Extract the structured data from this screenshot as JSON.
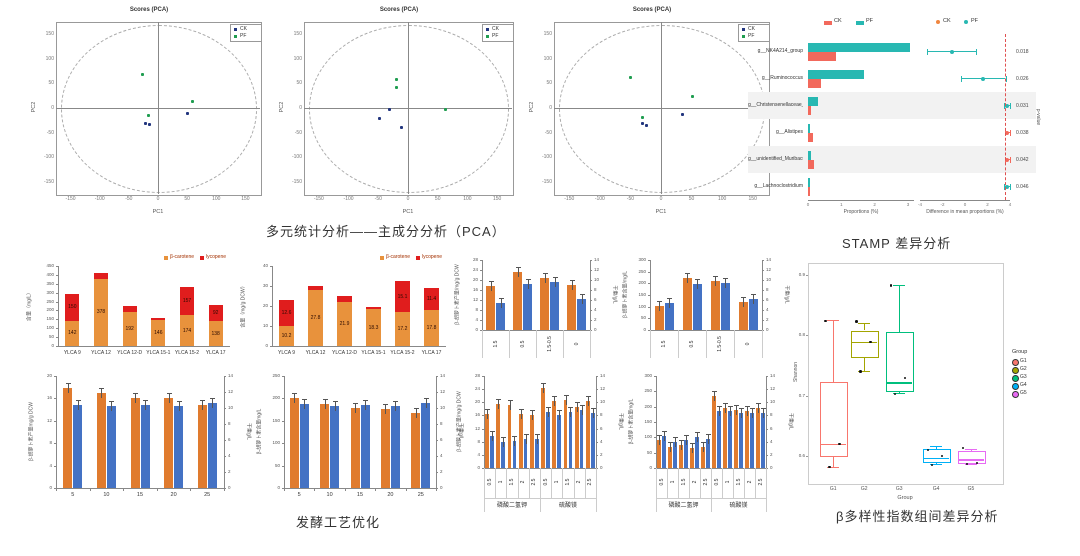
{
  "captions": {
    "pca": "多元统计分析——主成分分析（PCA）",
    "stamp": "STAMP 差异分析",
    "ferment": "发酵工艺优化",
    "beta": "β多样性指数组间差异分析"
  },
  "colors": {
    "navy": "#22357e",
    "green": "#1f9d50",
    "teal": "#28b8b2",
    "salmon": "#f2695c",
    "orange_dot": "#f0863f",
    "stack_orange": "#e8923c",
    "red": "#e01d1d",
    "bar_orange": "#e07b2e",
    "bar_blue": "#4472c4",
    "err": "#555555",
    "dashed_red": "#e05050"
  },
  "chart_data": {
    "pca1": {
      "type": "scatter",
      "title": "Scores (PCA)",
      "xlabel": "PC1",
      "ylabel": "PC2",
      "xticks": [
        "-150",
        "-100",
        "-50",
        "0",
        "50",
        "100",
        "150"
      ],
      "yticks": [
        "150",
        "100",
        "50",
        "0",
        "-50",
        "-100",
        "-150"
      ],
      "legend": [
        {
          "label": "CK",
          "c": "navy"
        },
        {
          "label": "PF",
          "c": "green"
        }
      ],
      "points": [
        {
          "x": 42.4,
          "y": 30.4,
          "c": "green"
        },
        {
          "x": 66.7,
          "y": 46.0,
          "c": "green"
        },
        {
          "x": 45.4,
          "y": 54.6,
          "c": "green"
        },
        {
          "x": 64.5,
          "y": 53.2,
          "c": "navy"
        },
        {
          "x": 43.9,
          "y": 58.9,
          "c": "navy"
        },
        {
          "x": 46.0,
          "y": 59.5,
          "c": "navy"
        }
      ]
    },
    "pca2": {
      "type": "scatter",
      "title": "Scores (PCA)",
      "xlabel": "PC1",
      "ylabel": "PC2",
      "xticks": [
        "-150",
        "-100",
        "-50",
        "0",
        "50",
        "100",
        "150"
      ],
      "yticks": [
        "150",
        "100",
        "50",
        "0",
        "-50",
        "-100",
        "-150"
      ],
      "legend": [
        {
          "label": "CK",
          "c": "navy"
        },
        {
          "label": "PF",
          "c": "green"
        }
      ],
      "points": [
        {
          "x": 44.7,
          "y": 33.2,
          "c": "green"
        },
        {
          "x": 44.7,
          "y": 38.1,
          "c": "green"
        },
        {
          "x": 68.2,
          "y": 50.6,
          "c": "green"
        },
        {
          "x": 41.3,
          "y": 50.6,
          "c": "navy"
        },
        {
          "x": 36.1,
          "y": 56.0,
          "c": "navy"
        },
        {
          "x": 47.0,
          "y": 61.5,
          "c": "navy"
        }
      ]
    },
    "pca3": {
      "type": "scatter",
      "title": "Scores (PCA)",
      "xlabel": "PC1",
      "ylabel": "PC2",
      "xticks": [
        "-150",
        "-100",
        "-50",
        "0",
        "50",
        "100",
        "150"
      ],
      "yticks": [
        "150",
        "100",
        "50",
        "0",
        "-50",
        "-100",
        "-150"
      ],
      "legend": [
        {
          "label": "CK",
          "c": "navy"
        },
        {
          "label": "PF",
          "c": "green"
        }
      ],
      "points": [
        {
          "x": 35.9,
          "y": 32.1,
          "c": "green"
        },
        {
          "x": 64.9,
          "y": 43.6,
          "c": "green"
        },
        {
          "x": 41.5,
          "y": 55.5,
          "c": "green"
        },
        {
          "x": 60.0,
          "y": 53.6,
          "c": "navy"
        },
        {
          "x": 41.2,
          "y": 59.3,
          "c": "navy"
        },
        {
          "x": 43.3,
          "y": 60.3,
          "c": "navy"
        }
      ]
    },
    "stamp": {
      "type": "stamp",
      "legend_left": [
        {
          "label": "CK",
          "c": "salmon"
        },
        {
          "label": "PF",
          "c": "teal"
        }
      ],
      "legend_right": [
        {
          "label": "CK",
          "c": "orange_dot"
        },
        {
          "label": "PF",
          "c": "teal"
        }
      ],
      "xlabel_left": "Proportions (%)",
      "xlabel_right": "Difference in mean proportions (%)",
      "ylabel_right": "p-value",
      "xticks_left": [
        "0",
        "1",
        "2",
        "3"
      ],
      "xticks_right": [
        "-4",
        "-2",
        "0",
        "2",
        "4"
      ],
      "rows": [
        {
          "label": "g__NK4A214_group",
          "teal": 100,
          "red": 27,
          "ci": 35,
          "lo": 8,
          "hi": 62,
          "dot": "teal",
          "p": "0.018",
          "stripe": false
        },
        {
          "label": "g__Ruminococcus",
          "teal": 55,
          "red": 13,
          "ci": 70,
          "lo": 46,
          "hi": 95,
          "dot": "teal",
          "p": "0.026",
          "stripe": false
        },
        {
          "label": "g__Christensenellaceae_R-7",
          "teal": 10,
          "red": 3,
          "ci": 96.5,
          "lo": 93,
          "hi": 100,
          "dot": "teal",
          "p": "0.031",
          "stripe": true
        },
        {
          "label": "g__Alistipes",
          "teal": 2,
          "red": 5,
          "ci": 97,
          "lo": 94.5,
          "hi": 99.5,
          "dot": "salmon",
          "p": "0.038",
          "stripe": false
        },
        {
          "label": "g__unidentified_Muribaculaceae",
          "teal": 3,
          "red": 6,
          "ci": 97,
          "lo": 94,
          "hi": 100,
          "dot": "salmon",
          "p": "0.042",
          "stripe": true
        },
        {
          "label": "g__Lachnoclostridium",
          "teal": 2,
          "red": 2,
          "ci": 96.5,
          "lo": 93.5,
          "hi": 99.5,
          "dot": "teal",
          "p": "0.046",
          "stripe": false
        }
      ]
    },
    "chartA": {
      "type": "stacked_bar",
      "categories": [
        "YLCA 9",
        "YLCA 12",
        "YLCA 12-D",
        "YLCA 15-1",
        "YLCA 15-2",
        "YLCA 17"
      ],
      "series": [
        {
          "name": "β-carotene",
          "color": "stack_orange",
          "values": [
            142,
            378,
            192,
            146,
            174,
            138
          ]
        },
        {
          "name": "lycopene",
          "color": "red",
          "values": [
            150,
            35,
            33,
            14,
            157,
            92
          ]
        }
      ],
      "ylabel": "含量（mg/L）",
      "ylim": [
        0,
        450
      ],
      "ystep": 50
    },
    "chartB": {
      "type": "stacked_bar",
      "categories": [
        "YLCA 9",
        "YLCA 12",
        "YLCA 12-D",
        "YLCA 15-1",
        "YLCA 15-2",
        "YLCA 17"
      ],
      "series": [
        {
          "name": "β-carotene",
          "color": "stack_orange",
          "values": [
            10.2,
            27.8,
            21.9,
            18.3,
            17.2,
            17.8
          ]
        },
        {
          "name": "lycopene",
          "color": "red",
          "values": [
            12.6,
            2.1,
            3.2,
            1.3,
            15.1,
            11.4
          ]
        }
      ],
      "ylabel": "含量（mg/g DCW）",
      "ylim": [
        0,
        40
      ],
      "ystep": 10
    },
    "chartC": {
      "type": "dual_bar",
      "rot": true,
      "categories": [
        "1.5",
        "0.5",
        "1.5-0.5",
        "0"
      ],
      "left": {
        "label": "β-胡萝卜素产量/mg/g DCW",
        "lim": 28,
        "step": 4,
        "values": [
          17.5,
          23.2,
          21.0,
          18.0
        ]
      },
      "right": {
        "label": "干重/g/L",
        "lim": 14,
        "step": 2,
        "values": [
          5.5,
          9.2,
          9.7,
          6.3
        ]
      }
    },
    "chartD": {
      "type": "dual_bar",
      "rot": true,
      "categories": [
        "1.5",
        "0.5",
        "1.5-0.5",
        "0"
      ],
      "left": {
        "label": "β-胡萝卜素含量/mg/L",
        "lim": 300,
        "step": 50,
        "values": [
          105,
          225,
          212,
          120
        ]
      },
      "right": {
        "label": "干重/g/L",
        "lim": 14,
        "step": 2,
        "values": [
          5.4,
          9.3,
          9.5,
          6.3
        ]
      }
    },
    "chartE": {
      "type": "dual_bar",
      "rot": false,
      "categories": [
        "5",
        "10",
        "15",
        "20",
        "25"
      ],
      "left": {
        "label": "β-胡萝卜素产量mg/g DCW",
        "lim": 20,
        "step": 4,
        "values": [
          17.9,
          17.0,
          16.0,
          16.1,
          14.8
        ]
      },
      "right": {
        "label": "干重g/L",
        "lim": 14,
        "step": 2,
        "values": [
          10.4,
          10.2,
          10.4,
          10.3,
          10.6
        ]
      }
    },
    "chartF": {
      "type": "dual_bar",
      "rot": false,
      "categories": [
        "5",
        "10",
        "15",
        "20",
        "25"
      ],
      "left": {
        "label": "β-胡萝卜素含量mg/L",
        "lim": 250,
        "step": 50,
        "values": [
          201,
          187,
          178,
          177,
          168
        ]
      },
      "right": {
        "label": "干重g/L",
        "lim": 14,
        "step": 2,
        "values": [
          10.5,
          10.2,
          10.4,
          10.3,
          10.6
        ]
      }
    },
    "chartG": {
      "type": "dual_bar",
      "rot": true,
      "categories": [
        "0.5",
        "1",
        "1.5",
        "2",
        "2.5",
        "0.5",
        "1",
        "1.5",
        "2",
        "2.5"
      ],
      "groups": [
        {
          "label": "磷酸二氢钾",
          "span": 5
        },
        {
          "label": "硫酸镁",
          "span": 5
        }
      ],
      "left": {
        "label": "β-胡萝卜素产量/mg/g DCW",
        "lim": 28,
        "step": 4,
        "values": [
          16.5,
          19.5,
          19.2,
          16.5,
          16.2,
          24.5,
          20.5,
          20.8,
          18.5,
          20.5
        ]
      },
      "right": {
        "label": "干重g/L",
        "lim": 14,
        "step": 2,
        "values": [
          4.8,
          4.0,
          4.1,
          4.4,
          4.4,
          8.5,
          8.0,
          8.5,
          8.8,
          8.4
        ]
      }
    },
    "chartH": {
      "type": "dual_bar",
      "rot": true,
      "categories": [
        "0.5",
        "1",
        "1.5",
        "2",
        "2.5",
        "0.5",
        "1",
        "1.5",
        "2",
        "2.5"
      ],
      "groups": [
        {
          "label": "磷酸二氢钾",
          "span": 5
        },
        {
          "label": "硫酸镁",
          "span": 5
        }
      ],
      "left": {
        "label": "β-胡萝卜素含量mg/L",
        "lim": 300,
        "step": 50,
        "values": [
          90,
          70,
          75,
          65,
          70,
          235,
          195,
          190,
          185,
          195
        ]
      },
      "right": {
        "label": "干重g/L",
        "lim": 14,
        "step": 2,
        "values": [
          4.9,
          4.0,
          4.2,
          4.7,
          4.4,
          8.6,
          8.6,
          8.4,
          8.4,
          8.4
        ]
      }
    },
    "boxplot": {
      "type": "box",
      "xlabel": "Group",
      "ylabel": "Shannon",
      "legend_title": "Group",
      "ylim": [
        0.555,
        0.92
      ],
      "yticks": [
        "0.9",
        "0.8",
        "0.7",
        "0.6"
      ],
      "ytick_vals": [
        0.9,
        0.8,
        0.7,
        0.6
      ],
      "boxes": [
        {
          "label": "G1",
          "color": "#F8766D",
          "x": 13,
          "q1": 0.602,
          "q3": 0.723,
          "med": 0.62,
          "lo": 0.582,
          "hi": 0.825,
          "points": [
            0.824,
            0.62,
            0.582
          ]
        },
        {
          "label": "G2",
          "color": "#A3A500",
          "x": 29,
          "q1": 0.766,
          "q3": 0.808,
          "med": 0.789,
          "lo": 0.74,
          "hi": 0.82,
          "points": [
            0.823,
            0.789,
            0.74
          ]
        },
        {
          "label": "G3",
          "color": "#00BF7D",
          "x": 47,
          "q1": 0.71,
          "q3": 0.806,
          "med": 0.722,
          "lo": 0.704,
          "hi": 0.883,
          "points": [
            0.883,
            0.729,
            0.703
          ]
        },
        {
          "label": "G4",
          "color": "#00B0F6",
          "x": 66,
          "q1": 0.592,
          "q3": 0.612,
          "med": 0.597,
          "lo": 0.586,
          "hi": 0.617,
          "points": [
            0.61,
            0.6,
            0.585
          ]
        },
        {
          "label": "G5",
          "color": "#E76BF3",
          "x": 84,
          "q1": 0.589,
          "q3": 0.608,
          "med": 0.594,
          "lo": 0.587,
          "hi": 0.612,
          "points": [
            0.613,
            0.588,
            0.587
          ]
        }
      ]
    }
  }
}
